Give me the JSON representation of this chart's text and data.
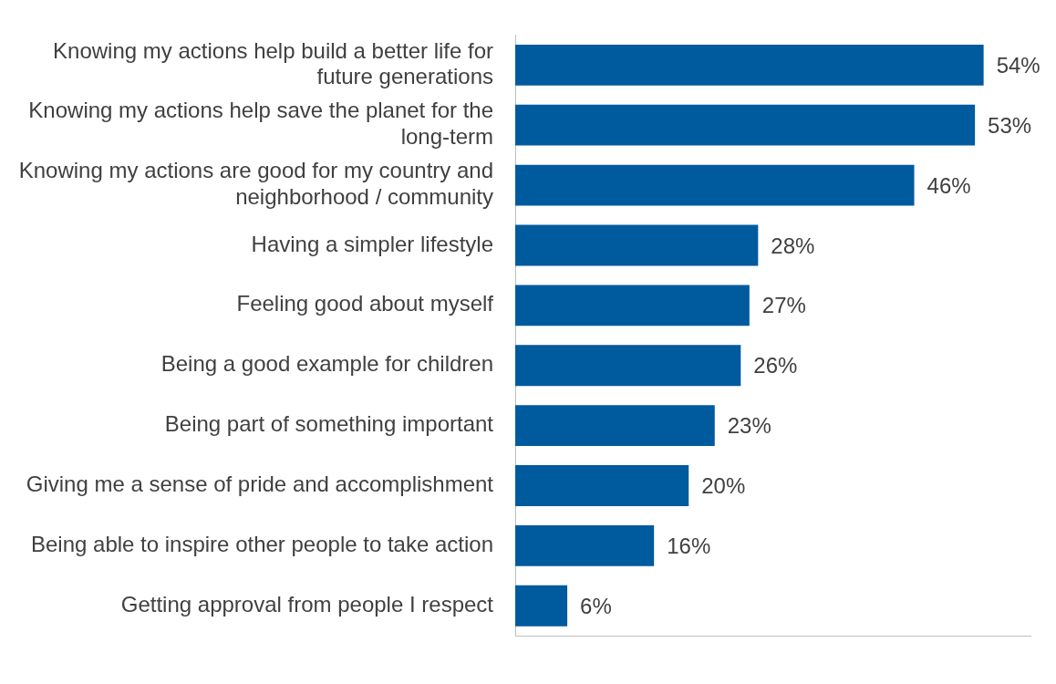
{
  "chart_data": {
    "type": "bar",
    "orientation": "horizontal",
    "relative": false,
    "categories": [
      "Knowing my actions help build a better life for future generations",
      "Knowing my actions help save the planet for the long-term",
      "Knowing my actions are good for my country and neighborhood / community",
      "Having a simpler lifestyle",
      "Feeling good about myself",
      "Being a good example for children",
      "Being part of something important",
      "Giving me a sense of pride and accomplishment",
      "Being able to inspire other people to take action",
      "Getting approval from people I respect"
    ],
    "values": [
      54,
      53,
      46,
      28,
      27,
      26,
      23,
      20,
      16,
      6
    ],
    "value_labels": [
      "54%",
      "53%",
      "46%",
      "28%",
      "27%",
      "26%",
      "23%",
      "20%",
      "16%",
      "6%"
    ],
    "color": "#005a9e",
    "grid": false,
    "legend": false,
    "tick_labels": "y"
  }
}
